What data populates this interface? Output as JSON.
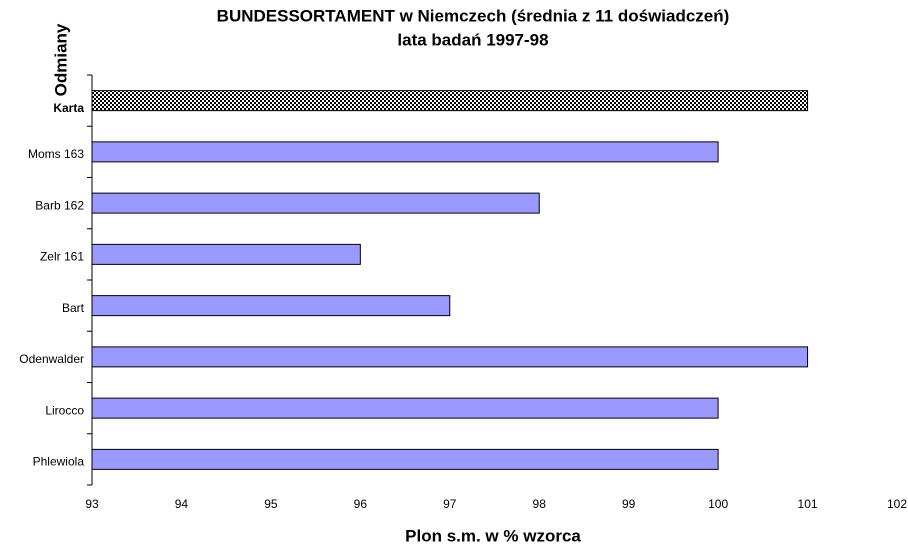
{
  "chart_data": {
    "type": "barh",
    "title": "BUNDESSORTAMENT w Niemczech (średnia z 11 doświadczeń)",
    "subtitle": "lata badań 1997-98",
    "xlabel": "Plon s.m. w % wzorca",
    "ylabel": "Odmiany",
    "categories": [
      "Karta",
      "Moms 163",
      "Barb 162",
      "Zelr 161",
      "Bart",
      "Odenwalder",
      "Lirocco",
      "Phlewiola"
    ],
    "values": [
      101,
      100,
      98,
      96,
      97,
      101,
      100,
      100
    ],
    "colors": [
      "checkered",
      "#9999ff",
      "#9999ff",
      "#9999ff",
      "#9999ff",
      "#9999ff",
      "#9999ff",
      "#9999ff"
    ],
    "xlim": [
      93,
      102
    ],
    "xticks": [
      93,
      94,
      95,
      96,
      97,
      98,
      99,
      100,
      101,
      102
    ],
    "grid": false
  }
}
